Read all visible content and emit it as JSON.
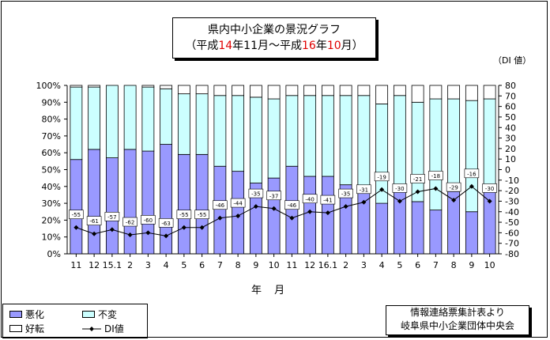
{
  "title": {
    "line1": "県内中小企業の景況グラフ",
    "line2_parts": [
      "（平成",
      "14",
      "年11月～平成",
      "16",
      "年",
      "10",
      "月）"
    ]
  },
  "di_unit_label": "（DI 値）",
  "x_axis_title": "年 月",
  "legend": {
    "worse": "悪化",
    "unchanged": "不変",
    "better": "好転",
    "di": "DI値"
  },
  "source": {
    "line1": "情報連絡票集計表より",
    "line2": "岐阜県中小企業団体中央会"
  },
  "colors": {
    "worse": "#9999ff",
    "unchanged": "#ccffff",
    "better": "#ffffff",
    "di_line": "#000000",
    "title_accent": "#e00000"
  },
  "chart_data": {
    "type": "bar",
    "stacked": true,
    "categories": [
      "11",
      "12",
      "15.1",
      "2",
      "3",
      "4",
      "5",
      "6",
      "7",
      "8",
      "9",
      "10",
      "11",
      "12",
      "16.1",
      "2",
      "3",
      "4",
      "5",
      "6",
      "7",
      "8",
      "9",
      "10"
    ],
    "series": [
      {
        "name": "悪化",
        "values": [
          56,
          62,
          57,
          62,
          61,
          65,
          59,
          59,
          52,
          49,
          42,
          45,
          52,
          46,
          46,
          41,
          38,
          30,
          37,
          31,
          26,
          37,
          25,
          38
        ]
      },
      {
        "name": "不変",
        "values": [
          43,
          37,
          43,
          38,
          38,
          33,
          36,
          36,
          42,
          45,
          51,
          47,
          42,
          48,
          48,
          53,
          56,
          59,
          57,
          59,
          66,
          55,
          66,
          54
        ]
      },
      {
        "name": "好転",
        "values": [
          1,
          1,
          0,
          0,
          1,
          2,
          5,
          5,
          6,
          6,
          7,
          8,
          6,
          6,
          6,
          6,
          6,
          11,
          6,
          10,
          8,
          8,
          9,
          8
        ]
      },
      {
        "name": "DI値",
        "axis": "right",
        "type": "line",
        "values": [
          -55,
          -61,
          -57,
          -62,
          -60,
          -63,
          -55,
          -55,
          -46,
          -44,
          -35,
          -37,
          -46,
          -40,
          -41,
          -35,
          -31,
          -19,
          -30,
          -21,
          -18,
          -29,
          -16,
          -30
        ]
      }
    ],
    "y_left": {
      "ticks": [
        "0%",
        "10%",
        "20%",
        "30%",
        "40%",
        "50%",
        "60%",
        "70%",
        "80%",
        "90%",
        "100%"
      ],
      "range": [
        0,
        100
      ]
    },
    "y_right": {
      "ticks": [
        "80",
        "70",
        "60",
        "50",
        "40",
        "30",
        "20",
        "10",
        "0",
        "-10",
        "-20",
        "-30",
        "-40",
        "-50",
        "-60",
        "-70",
        "-80"
      ],
      "range": [
        -80,
        80
      ]
    },
    "xlabel": "年 月",
    "grid": false,
    "legend_position": "bottom-left"
  }
}
